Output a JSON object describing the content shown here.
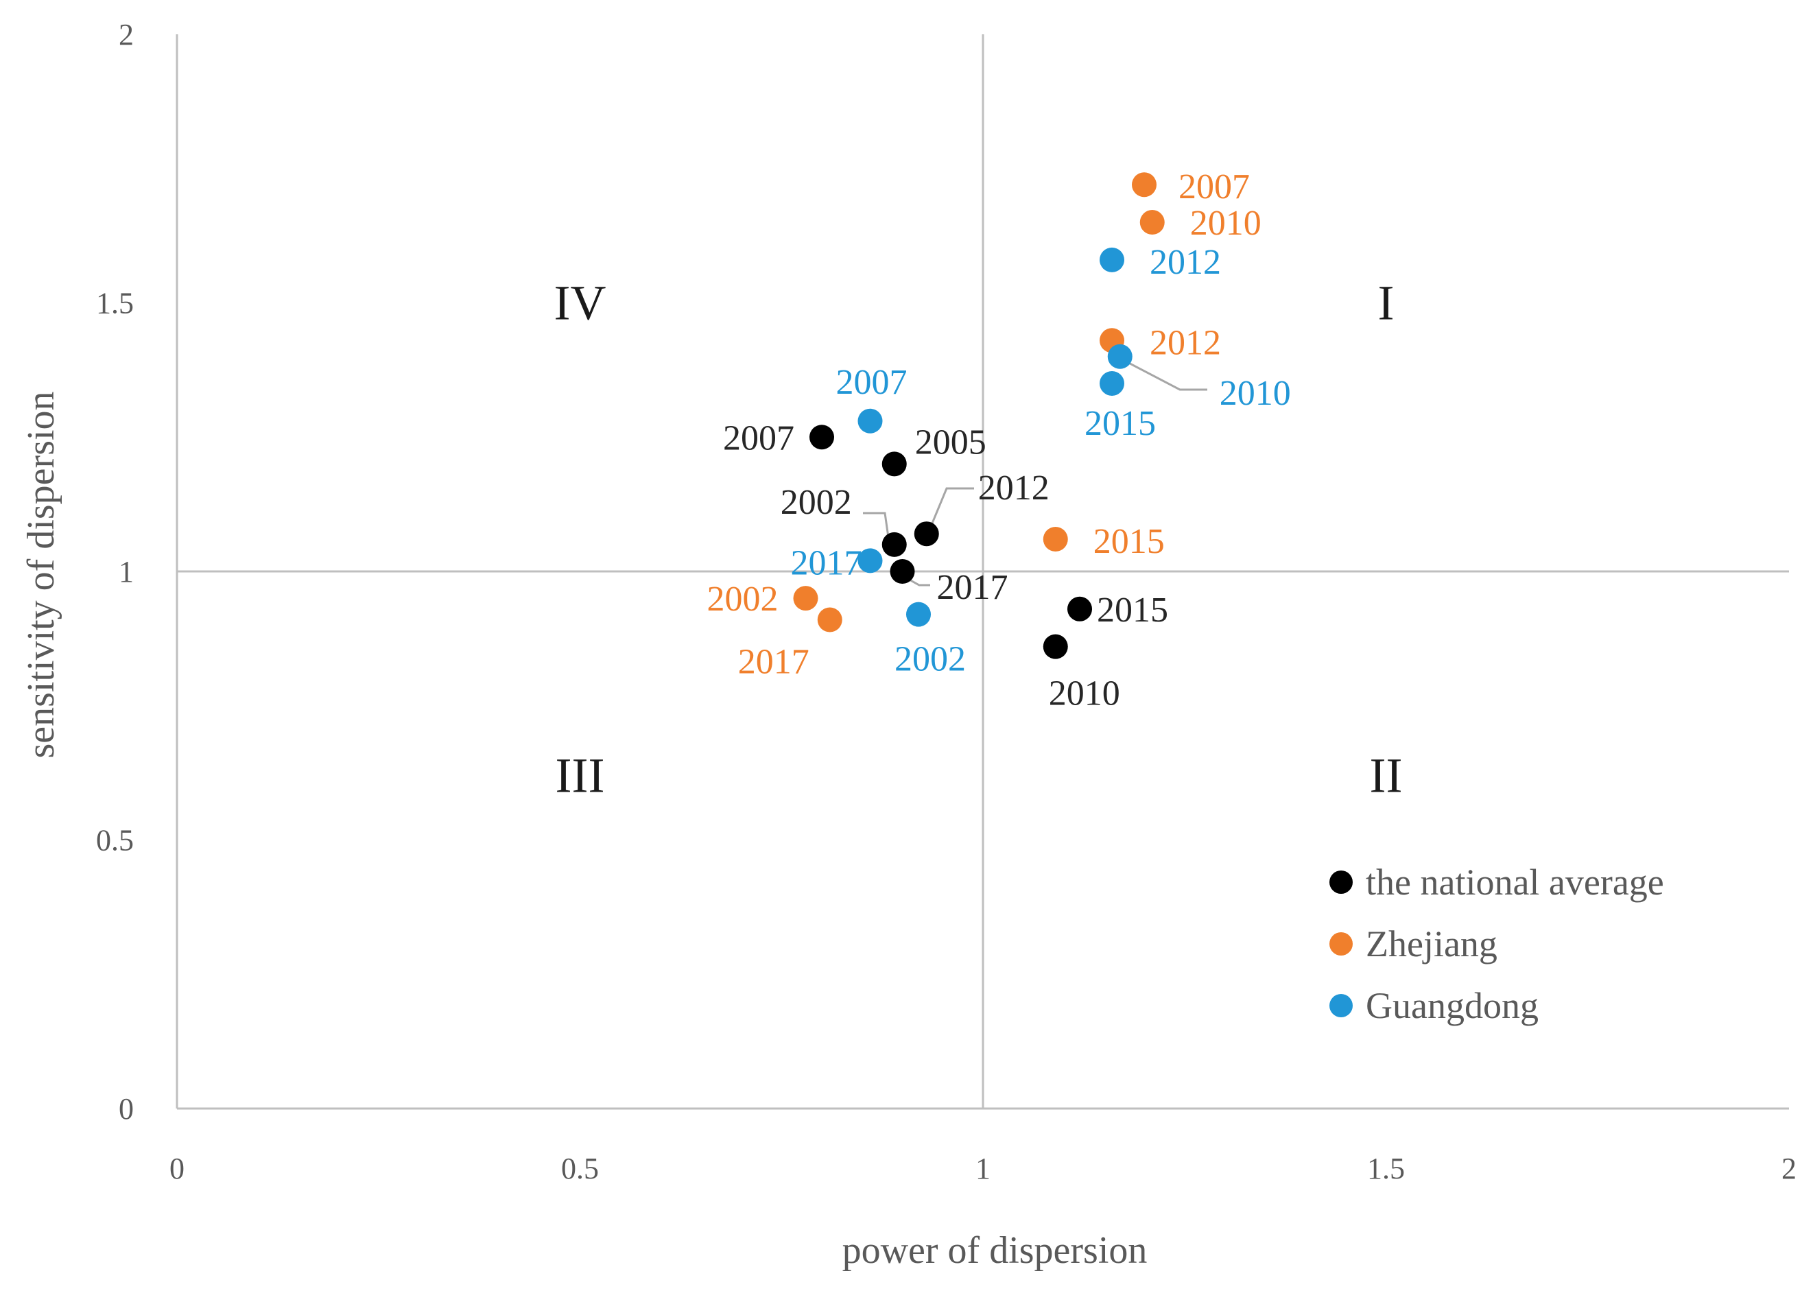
{
  "chart_data": {
    "type": "scatter",
    "title": "",
    "xlabel": "power of dispersion",
    "ylabel": "sensitivity of dispersion",
    "xlim": [
      0,
      2
    ],
    "ylim": [
      0,
      2
    ],
    "x_ticks": [
      "0",
      "0.5",
      "1",
      "1.5",
      "2"
    ],
    "y_ticks": [
      "0",
      "0.5",
      "1",
      "1.5",
      "2"
    ],
    "reference_lines": {
      "x": 1,
      "y": 1
    },
    "quadrants": [
      {
        "label": "I",
        "x": 1.5,
        "y": 1.5
      },
      {
        "label": "II",
        "x": 1.5,
        "y": 0.62
      },
      {
        "label": "III",
        "x": 0.5,
        "y": 0.62
      },
      {
        "label": "IV",
        "x": 0.5,
        "y": 1.5
      }
    ],
    "legend_position": "bottom-right",
    "series": [
      {
        "name": "the national average",
        "color": "#000000",
        "points": [
          {
            "label": "2002",
            "x": 0.89,
            "y": 1.05
          },
          {
            "label": "2005",
            "x": 0.89,
            "y": 1.2
          },
          {
            "label": "2007",
            "x": 0.8,
            "y": 1.25
          },
          {
            "label": "2010",
            "x": 1.09,
            "y": 0.86
          },
          {
            "label": "2012",
            "x": 0.93,
            "y": 1.07
          },
          {
            "label": "2015",
            "x": 1.12,
            "y": 0.93
          },
          {
            "label": "2017",
            "x": 0.9,
            "y": 1.0
          }
        ]
      },
      {
        "name": "Zhejiang",
        "color": "#F07F2C",
        "points": [
          {
            "label": "2002",
            "x": 0.78,
            "y": 0.95
          },
          {
            "label": "2007",
            "x": 1.2,
            "y": 1.72
          },
          {
            "label": "2010",
            "x": 1.21,
            "y": 1.65
          },
          {
            "label": "2012",
            "x": 1.16,
            "y": 1.43
          },
          {
            "label": "2015",
            "x": 1.09,
            "y": 1.06
          },
          {
            "label": "2017",
            "x": 0.81,
            "y": 0.91
          }
        ]
      },
      {
        "name": "Guangdong",
        "color": "#2196D6",
        "points": [
          {
            "label": "2002",
            "x": 0.92,
            "y": 0.92
          },
          {
            "label": "2007",
            "x": 0.86,
            "y": 1.28
          },
          {
            "label": "2010",
            "x": 1.17,
            "y": 1.4
          },
          {
            "label": "2012",
            "x": 1.16,
            "y": 1.58
          },
          {
            "label": "2015",
            "x": 1.16,
            "y": 1.35
          },
          {
            "label": "2017",
            "x": 0.86,
            "y": 1.02
          }
        ]
      }
    ]
  }
}
